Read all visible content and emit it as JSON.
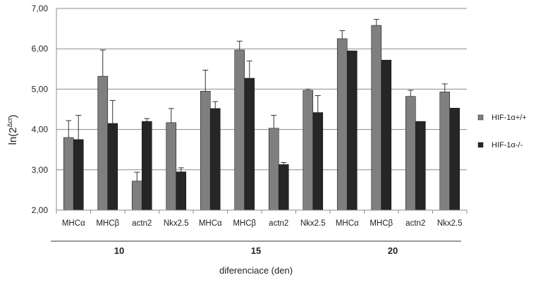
{
  "chart_data": {
    "type": "bar",
    "xlabel": "diferenciace (den)",
    "ylabel_base": "ln(2",
    "ylabel_sup": "Δct",
    "ylabel_end": ")",
    "ylim": [
      2.0,
      7.0
    ],
    "yticks": [
      "2,00",
      "3,00",
      "4,00",
      "5,00",
      "6,00",
      "7,00"
    ],
    "grid": true,
    "legend_position": "right",
    "categories": [
      "MHCα",
      "MHCβ",
      "actn2",
      "Nkx2.5",
      "MHCα",
      "MHCβ",
      "actn2",
      "Nkx2.5",
      "MHCα",
      "MHCβ",
      "actn2",
      "Nkx2.5"
    ],
    "groups": [
      {
        "label": "10",
        "start": 0,
        "end": 3
      },
      {
        "label": "15",
        "start": 4,
        "end": 7
      },
      {
        "label": "20",
        "start": 8,
        "end": 11
      }
    ],
    "series": [
      {
        "name": "HIF-1α+/+",
        "color": "#7f7f7f",
        "values": [
          3.8,
          5.32,
          2.72,
          4.17,
          4.95,
          5.97,
          4.03,
          4.97,
          6.25,
          6.58,
          4.82,
          4.93
        ],
        "errors": [
          0.42,
          0.65,
          0.22,
          0.35,
          0.52,
          0.22,
          0.32,
          0.03,
          0.2,
          0.15,
          0.15,
          0.2
        ]
      },
      {
        "name": "HIF-1α-/-",
        "color": "#262626",
        "values": [
          3.75,
          4.15,
          4.2,
          2.95,
          4.52,
          5.27,
          3.13,
          4.42,
          5.95,
          5.72,
          4.2,
          4.53
        ],
        "errors": [
          0.6,
          0.57,
          0.07,
          0.1,
          0.17,
          0.43,
          0.05,
          0.42,
          0.0,
          0.0,
          0.0,
          0.0
        ]
      }
    ]
  }
}
